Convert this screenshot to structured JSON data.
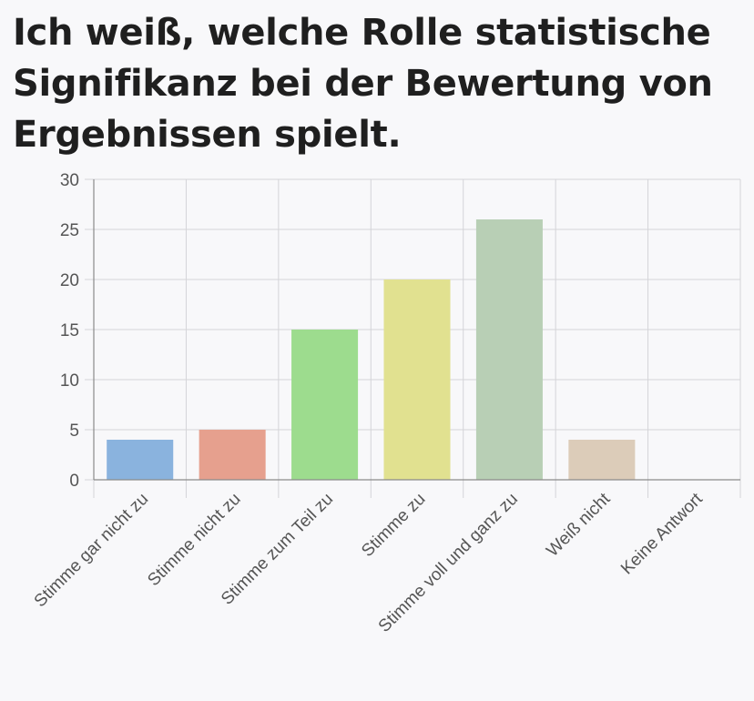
{
  "chart_data": {
    "type": "bar",
    "title": "Ich weiß, welche Rolle statistische Signifikanz bei der Bewertung von Ergebnissen spielt.",
    "xlabel": "",
    "ylabel": "",
    "categories": [
      "Stimme gar nicht zu",
      "Stimme nicht zu",
      "Stimme zum Teil zu",
      "Stimme zu",
      "Stimme voll und ganz zu",
      "Weiß nicht",
      "Keine Antwort"
    ],
    "values": [
      4,
      5,
      15,
      20,
      26,
      4,
      0
    ],
    "colors": [
      "#8ab3de",
      "#e6a08e",
      "#9ddc8e",
      "#e1e190",
      "#b8cfb5",
      "#dcccb9",
      "#cccccc"
    ],
    "ylim": [
      0,
      30
    ],
    "yticks": [
      0,
      5,
      10,
      15,
      20,
      25,
      30
    ],
    "grid": true,
    "legend": "none"
  }
}
